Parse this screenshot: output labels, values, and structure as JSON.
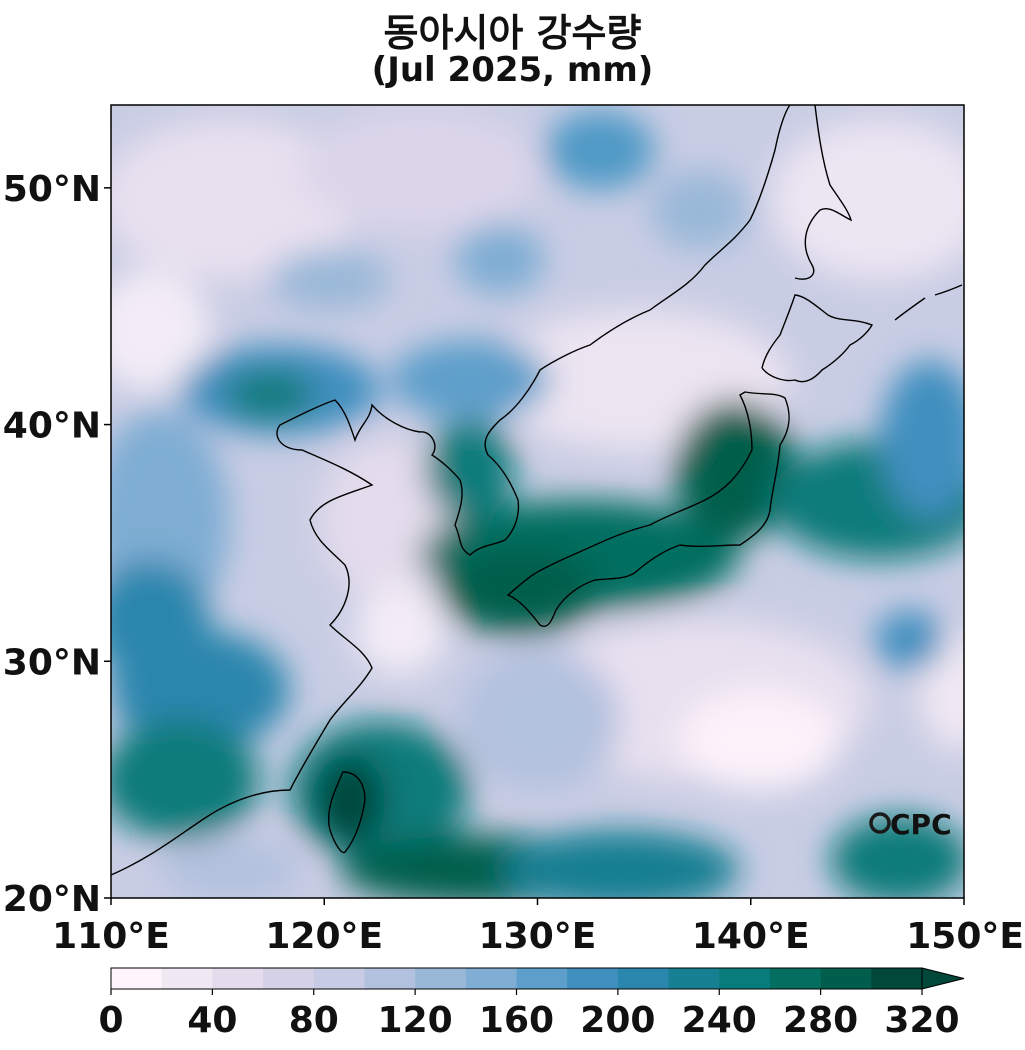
{
  "title": "동아시아 강수량",
  "subtitle": "(Jul 2025, mm)",
  "watermark": "CPC",
  "map": {
    "lon_range": [
      110,
      150
    ],
    "lat_range": [
      20,
      53.5
    ],
    "lat_ticks": [
      {
        "value": 50,
        "label": "50°N"
      },
      {
        "value": 40,
        "label": "40°N"
      },
      {
        "value": 30,
        "label": "30°N"
      },
      {
        "value": 20,
        "label": "20°N"
      }
    ],
    "lon_ticks": [
      {
        "value": 110,
        "label": "110°E"
      },
      {
        "value": 120,
        "label": "120°E"
      },
      {
        "value": 130,
        "label": "130°E"
      },
      {
        "value": 140,
        "label": "140°E"
      },
      {
        "value": 150,
        "label": "150°E"
      }
    ]
  },
  "colorbar": {
    "min": 0,
    "max": 320,
    "step": 20,
    "extend": "max",
    "ticks": [
      "0",
      "40",
      "80",
      "120",
      "160",
      "200",
      "240",
      "280",
      "320"
    ],
    "colors": [
      "#fff4fb",
      "#f0e8f3",
      "#e4dcec",
      "#d5d1e6",
      "#c7cbe3",
      "#b2c1de",
      "#99b8d8",
      "#7fadd3",
      "#5d9fca",
      "#3f8fbf",
      "#2b86ad",
      "#167f92",
      "#087c7a",
      "#046e60",
      "#025e4c",
      "#01473a"
    ]
  }
}
